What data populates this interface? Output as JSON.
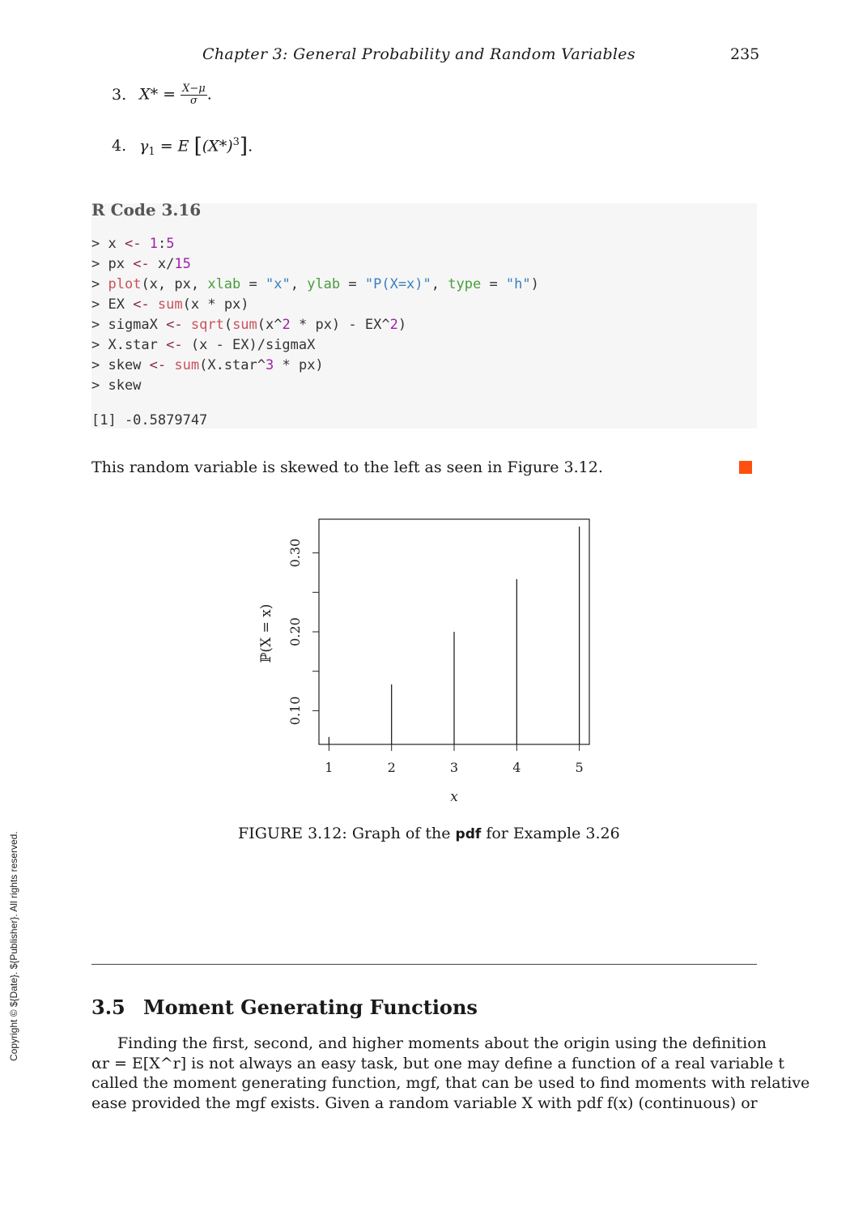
{
  "header": {
    "running_title": "Chapter 3: General Probability and Random Variables",
    "page_number": "235"
  },
  "items": [
    {
      "num": "3.",
      "lhs": "X* =",
      "frac_top": "X−μ",
      "frac_bot": "σ",
      "tail": "."
    },
    {
      "num": "4.",
      "lhs": "γ",
      "sub": "1",
      "mid": " = E",
      "inner": "(X*)",
      "sup": "3",
      "tail": "."
    }
  ],
  "code": {
    "title": "R Code 3.16",
    "lines": [
      [
        [
          "tk-plain",
          "> x "
        ],
        [
          "tk-op",
          "<-"
        ],
        [
          "tk-plain",
          " "
        ],
        [
          "tk-num",
          "1"
        ],
        [
          "tk-plain",
          ":"
        ],
        [
          "tk-num",
          "5"
        ]
      ],
      [
        [
          "tk-plain",
          "> px "
        ],
        [
          "tk-op",
          "<-"
        ],
        [
          "tk-plain",
          " x/"
        ],
        [
          "tk-num",
          "15"
        ]
      ],
      [
        [
          "tk-plain",
          "> "
        ],
        [
          "tk-fn",
          "plot"
        ],
        [
          "tk-plain",
          "(x, px, "
        ],
        [
          "tk-arg",
          "xlab"
        ],
        [
          "tk-plain",
          " = "
        ],
        [
          "tk-str",
          "\"x\""
        ],
        [
          "tk-plain",
          ", "
        ],
        [
          "tk-arg",
          "ylab"
        ],
        [
          "tk-plain",
          " = "
        ],
        [
          "tk-str",
          "\"P(X=x)\""
        ],
        [
          "tk-plain",
          ", "
        ],
        [
          "tk-arg",
          "type"
        ],
        [
          "tk-plain",
          " = "
        ],
        [
          "tk-str",
          "\"h\""
        ],
        [
          "tk-plain",
          ")"
        ]
      ],
      [
        [
          "tk-plain",
          "> EX "
        ],
        [
          "tk-op",
          "<-"
        ],
        [
          "tk-plain",
          " "
        ],
        [
          "tk-fn",
          "sum"
        ],
        [
          "tk-plain",
          "(x * px)"
        ]
      ],
      [
        [
          "tk-plain",
          "> sigmaX "
        ],
        [
          "tk-op",
          "<-"
        ],
        [
          "tk-plain",
          " "
        ],
        [
          "tk-fn",
          "sqrt"
        ],
        [
          "tk-plain",
          "("
        ],
        [
          "tk-fn",
          "sum"
        ],
        [
          "tk-plain",
          "(x^"
        ],
        [
          "tk-num",
          "2"
        ],
        [
          "tk-plain",
          " * px) - EX^"
        ],
        [
          "tk-num",
          "2"
        ],
        [
          "tk-plain",
          ")"
        ]
      ],
      [
        [
          "tk-plain",
          "> X.star "
        ],
        [
          "tk-op",
          "<-"
        ],
        [
          "tk-plain",
          " (x - EX)/sigmaX"
        ]
      ],
      [
        [
          "tk-plain",
          "> skew "
        ],
        [
          "tk-op",
          "<-"
        ],
        [
          "tk-plain",
          " "
        ],
        [
          "tk-fn",
          "sum"
        ],
        [
          "tk-plain",
          "(X.star^"
        ],
        [
          "tk-num",
          "3"
        ],
        [
          "tk-plain",
          " * px)"
        ]
      ],
      [
        [
          "tk-plain",
          "> skew"
        ]
      ]
    ],
    "output": "[1] -0.5879747"
  },
  "paragraph1": "This random variable is skewed to the left as seen in Figure 3.12.",
  "colors": {
    "qed_square": "#ff4f0f",
    "code_background": "#f6f6f6"
  },
  "chart_data": {
    "type": "bar",
    "x": [
      1,
      2,
      3,
      4,
      5
    ],
    "values": [
      0.0667,
      0.1333,
      0.2,
      0.2667,
      0.3333
    ],
    "xlabel": "x",
    "ylabel": "ℙ(X = x)",
    "xticks": [
      "1",
      "2",
      "3",
      "4",
      "5"
    ],
    "yticks": [
      {
        "value": 0.1,
        "label": "0.10"
      },
      {
        "value": 0.2,
        "label": "0.20"
      },
      {
        "value": 0.3,
        "label": "0.30"
      }
    ],
    "xlim": [
      0.84,
      5.16
    ],
    "ylim": [
      0.0573,
      0.3427
    ],
    "grid": false
  },
  "figure": {
    "caption_prefix": "FIGURE 3.12: Graph of the ",
    "caption_keyword": "pdf",
    "caption_suffix": " for Example 3.26"
  },
  "copyright": "Copyright © ${Date}. ${Publisher}. All rights reserved.",
  "section": {
    "number": "3.5",
    "title": "Moment Generating Functions"
  },
  "body_lines": [
    "Finding the first, second, and higher moments about the origin using the definition",
    "αr = E[X^r] is not always an easy task, but one may define a function of a real variable t",
    "called the moment generating function, mgf, that can be used to find moments with relative",
    "ease provided the mgf exists. Given a random variable X with pdf f(x) (continuous) or"
  ]
}
